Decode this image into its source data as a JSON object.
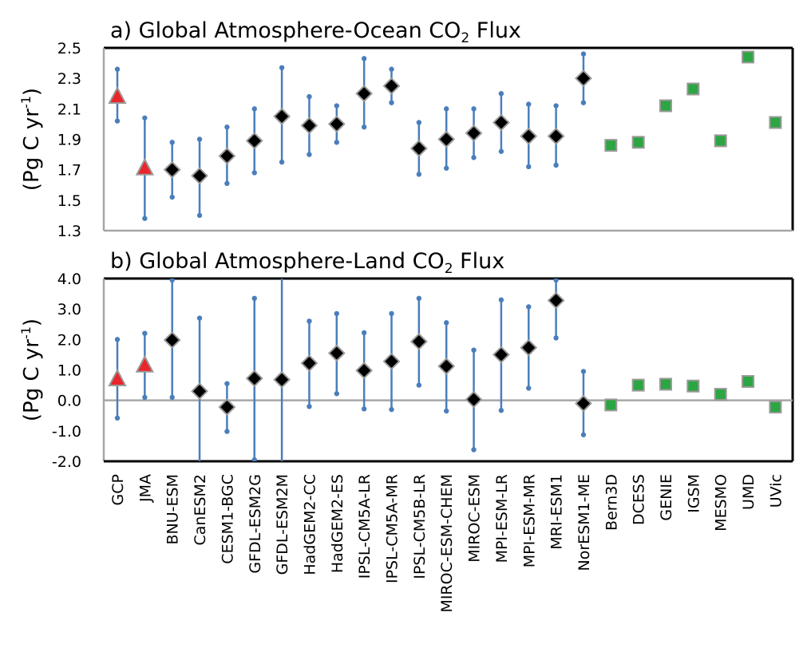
{
  "chart_data": [
    {
      "type": "scatter",
      "panel_label": "a) Global Atmosphere-Ocean CO",
      "title_subscript": "2",
      "title_suffix": " Flux",
      "ylabel": "(Pg C yr",
      "ylabel_sup": "-1",
      "ylabel_close": ")",
      "ylim": [
        1.3,
        2.5
      ],
      "yticks": [
        "1.3",
        "1.5",
        "1.7",
        "1.9",
        "2.1",
        "2.3",
        "2.5"
      ],
      "ytick_values": [
        1.3,
        1.5,
        1.7,
        1.9,
        2.1,
        2.3,
        2.5
      ],
      "zero_line": false,
      "grid": false,
      "points": [
        {
          "category": "GCP",
          "group": "observation",
          "value": 2.18,
          "low": 2.02,
          "high": 2.36
        },
        {
          "category": "JMA",
          "group": "observation",
          "value": 1.71,
          "low": 1.38,
          "high": 2.04
        },
        {
          "category": "BNU-ESM",
          "group": "esm",
          "value": 1.7,
          "low": 1.52,
          "high": 1.88
        },
        {
          "category": "CanESM2",
          "group": "esm",
          "value": 1.66,
          "low": 1.4,
          "high": 1.9
        },
        {
          "category": "CESM1-BGC",
          "group": "esm",
          "value": 1.79,
          "low": 1.61,
          "high": 1.98
        },
        {
          "category": "GFDL-ESM2G",
          "group": "esm",
          "value": 1.89,
          "low": 1.68,
          "high": 2.1
        },
        {
          "category": "GFDL-ESM2M",
          "group": "esm",
          "value": 2.05,
          "low": 1.75,
          "high": 2.37
        },
        {
          "category": "HadGEM2-CC",
          "group": "esm",
          "value": 1.99,
          "low": 1.8,
          "high": 2.18
        },
        {
          "category": "HadGEM2-ES",
          "group": "esm",
          "value": 2.0,
          "low": 1.88,
          "high": 2.12
        },
        {
          "category": "IPSL-CM5A-LR",
          "group": "esm",
          "value": 2.2,
          "low": 1.98,
          "high": 2.43
        },
        {
          "category": "IPSL-CM5A-MR",
          "group": "esm",
          "value": 2.25,
          "low": 2.14,
          "high": 2.36
        },
        {
          "category": "IPSL-CM5B-LR",
          "group": "esm",
          "value": 1.84,
          "low": 1.67,
          "high": 2.01
        },
        {
          "category": "MIROC-ESM-CHEM",
          "group": "esm",
          "value": 1.9,
          "low": 1.71,
          "high": 2.1
        },
        {
          "category": "MIROC-ESM",
          "group": "esm",
          "value": 1.94,
          "low": 1.78,
          "high": 2.1
        },
        {
          "category": "MPI-ESM-LR",
          "group": "esm",
          "value": 2.01,
          "low": 1.82,
          "high": 2.2
        },
        {
          "category": "MPI-ESM-MR",
          "group": "esm",
          "value": 1.92,
          "low": 1.72,
          "high": 2.13
        },
        {
          "category": "MRI-ESM1",
          "group": "esm",
          "value": 1.92,
          "low": 1.73,
          "high": 2.12
        },
        {
          "category": "NorESM1-ME",
          "group": "esm",
          "value": 2.3,
          "low": 2.14,
          "high": 2.46
        },
        {
          "category": "Bern3D",
          "group": "emic",
          "value": 1.86
        },
        {
          "category": "DCESS",
          "group": "emic",
          "value": 1.88
        },
        {
          "category": "GENIE",
          "group": "emic",
          "value": 2.12
        },
        {
          "category": "IGSM",
          "group": "emic",
          "value": 2.23
        },
        {
          "category": "MESMO",
          "group": "emic",
          "value": 1.89
        },
        {
          "category": "UMD",
          "group": "emic",
          "value": 2.44
        },
        {
          "category": "UVic",
          "group": "emic",
          "value": 2.01
        }
      ]
    },
    {
      "type": "scatter",
      "panel_label": "b) Global Atmosphere-Land CO",
      "title_subscript": "2",
      "title_suffix": " Flux",
      "ylabel": "(Pg C yr",
      "ylabel_sup": "-1",
      "ylabel_close": ")",
      "ylim": [
        -2.0,
        4.0
      ],
      "yticks": [
        "-2.0",
        "-1.0",
        "0.0",
        "1.0",
        "2.0",
        "3.0",
        "4.0"
      ],
      "ytick_values": [
        -2.0,
        -1.0,
        0.0,
        1.0,
        2.0,
        3.0,
        4.0
      ],
      "zero_line": true,
      "grid": false,
      "points": [
        {
          "category": "GCP",
          "group": "observation",
          "value": 0.7,
          "low": -0.58,
          "high": 2.0
        },
        {
          "category": "JMA",
          "group": "observation",
          "value": 1.15,
          "low": 0.1,
          "high": 2.2
        },
        {
          "category": "BNU-ESM",
          "group": "esm",
          "value": 1.98,
          "low": 0.1,
          "high": 3.95
        },
        {
          "category": "CanESM2",
          "group": "esm",
          "value": 0.3,
          "low": -2.0,
          "high": 2.7
        },
        {
          "category": "CESM1-BGC",
          "group": "esm",
          "value": -0.22,
          "low": -1.02,
          "high": 0.55
        },
        {
          "category": "GFDL-ESM2G",
          "group": "esm",
          "value": 0.72,
          "low": -1.95,
          "high": 3.35
        },
        {
          "category": "GFDL-ESM2M",
          "group": "esm",
          "value": 0.68,
          "low": -2.0,
          "high": 4.0
        },
        {
          "category": "HadGEM2-CC",
          "group": "esm",
          "value": 1.22,
          "low": -0.2,
          "high": 2.6
        },
        {
          "category": "HadGEM2-ES",
          "group": "esm",
          "value": 1.55,
          "low": 0.22,
          "high": 2.85
        },
        {
          "category": "IPSL-CM5A-LR",
          "group": "esm",
          "value": 0.98,
          "low": -0.28,
          "high": 2.22
        },
        {
          "category": "IPSL-CM5A-MR",
          "group": "esm",
          "value": 1.28,
          "low": -0.3,
          "high": 2.85
        },
        {
          "category": "IPSL-CM5B-LR",
          "group": "esm",
          "value": 1.93,
          "low": 0.5,
          "high": 3.35
        },
        {
          "category": "MIROC-ESM-CHEM",
          "group": "esm",
          "value": 1.12,
          "low": -0.35,
          "high": 2.55
        },
        {
          "category": "MIROC-ESM",
          "group": "esm",
          "value": 0.03,
          "low": -1.62,
          "high": 1.65
        },
        {
          "category": "MPI-ESM-LR",
          "group": "esm",
          "value": 1.5,
          "low": -0.33,
          "high": 3.3
        },
        {
          "category": "MPI-ESM-MR",
          "group": "esm",
          "value": 1.73,
          "low": 0.4,
          "high": 3.07
        },
        {
          "category": "MRI-ESM1",
          "group": "esm",
          "value": 3.28,
          "low": 2.05,
          "high": 3.95
        },
        {
          "category": "NorESM1-ME",
          "group": "esm",
          "value": -0.1,
          "low": -1.13,
          "high": 0.95
        },
        {
          "category": "Bern3D",
          "group": "emic",
          "value": -0.15
        },
        {
          "category": "DCESS",
          "group": "emic",
          "value": 0.5
        },
        {
          "category": "GENIE",
          "group": "emic",
          "value": 0.53
        },
        {
          "category": "IGSM",
          "group": "emic",
          "value": 0.47
        },
        {
          "category": "MESMO",
          "group": "emic",
          "value": 0.2
        },
        {
          "category": "UMD",
          "group": "emic",
          "value": 0.62
        },
        {
          "category": "UVic",
          "group": "emic",
          "value": -0.22
        }
      ]
    }
  ],
  "colors": {
    "errorbar": "#4a7ebb",
    "observation": "#e8262b",
    "esm": "#000000",
    "emic": "#2ca642",
    "marker_outline": "#9a9a9a",
    "axis_frame": "#000000",
    "axis_left_bottom": "#a6a6a6"
  },
  "marker_icons": {
    "observation": "triangle-icon",
    "esm": "diamond-icon",
    "emic": "square-icon"
  }
}
